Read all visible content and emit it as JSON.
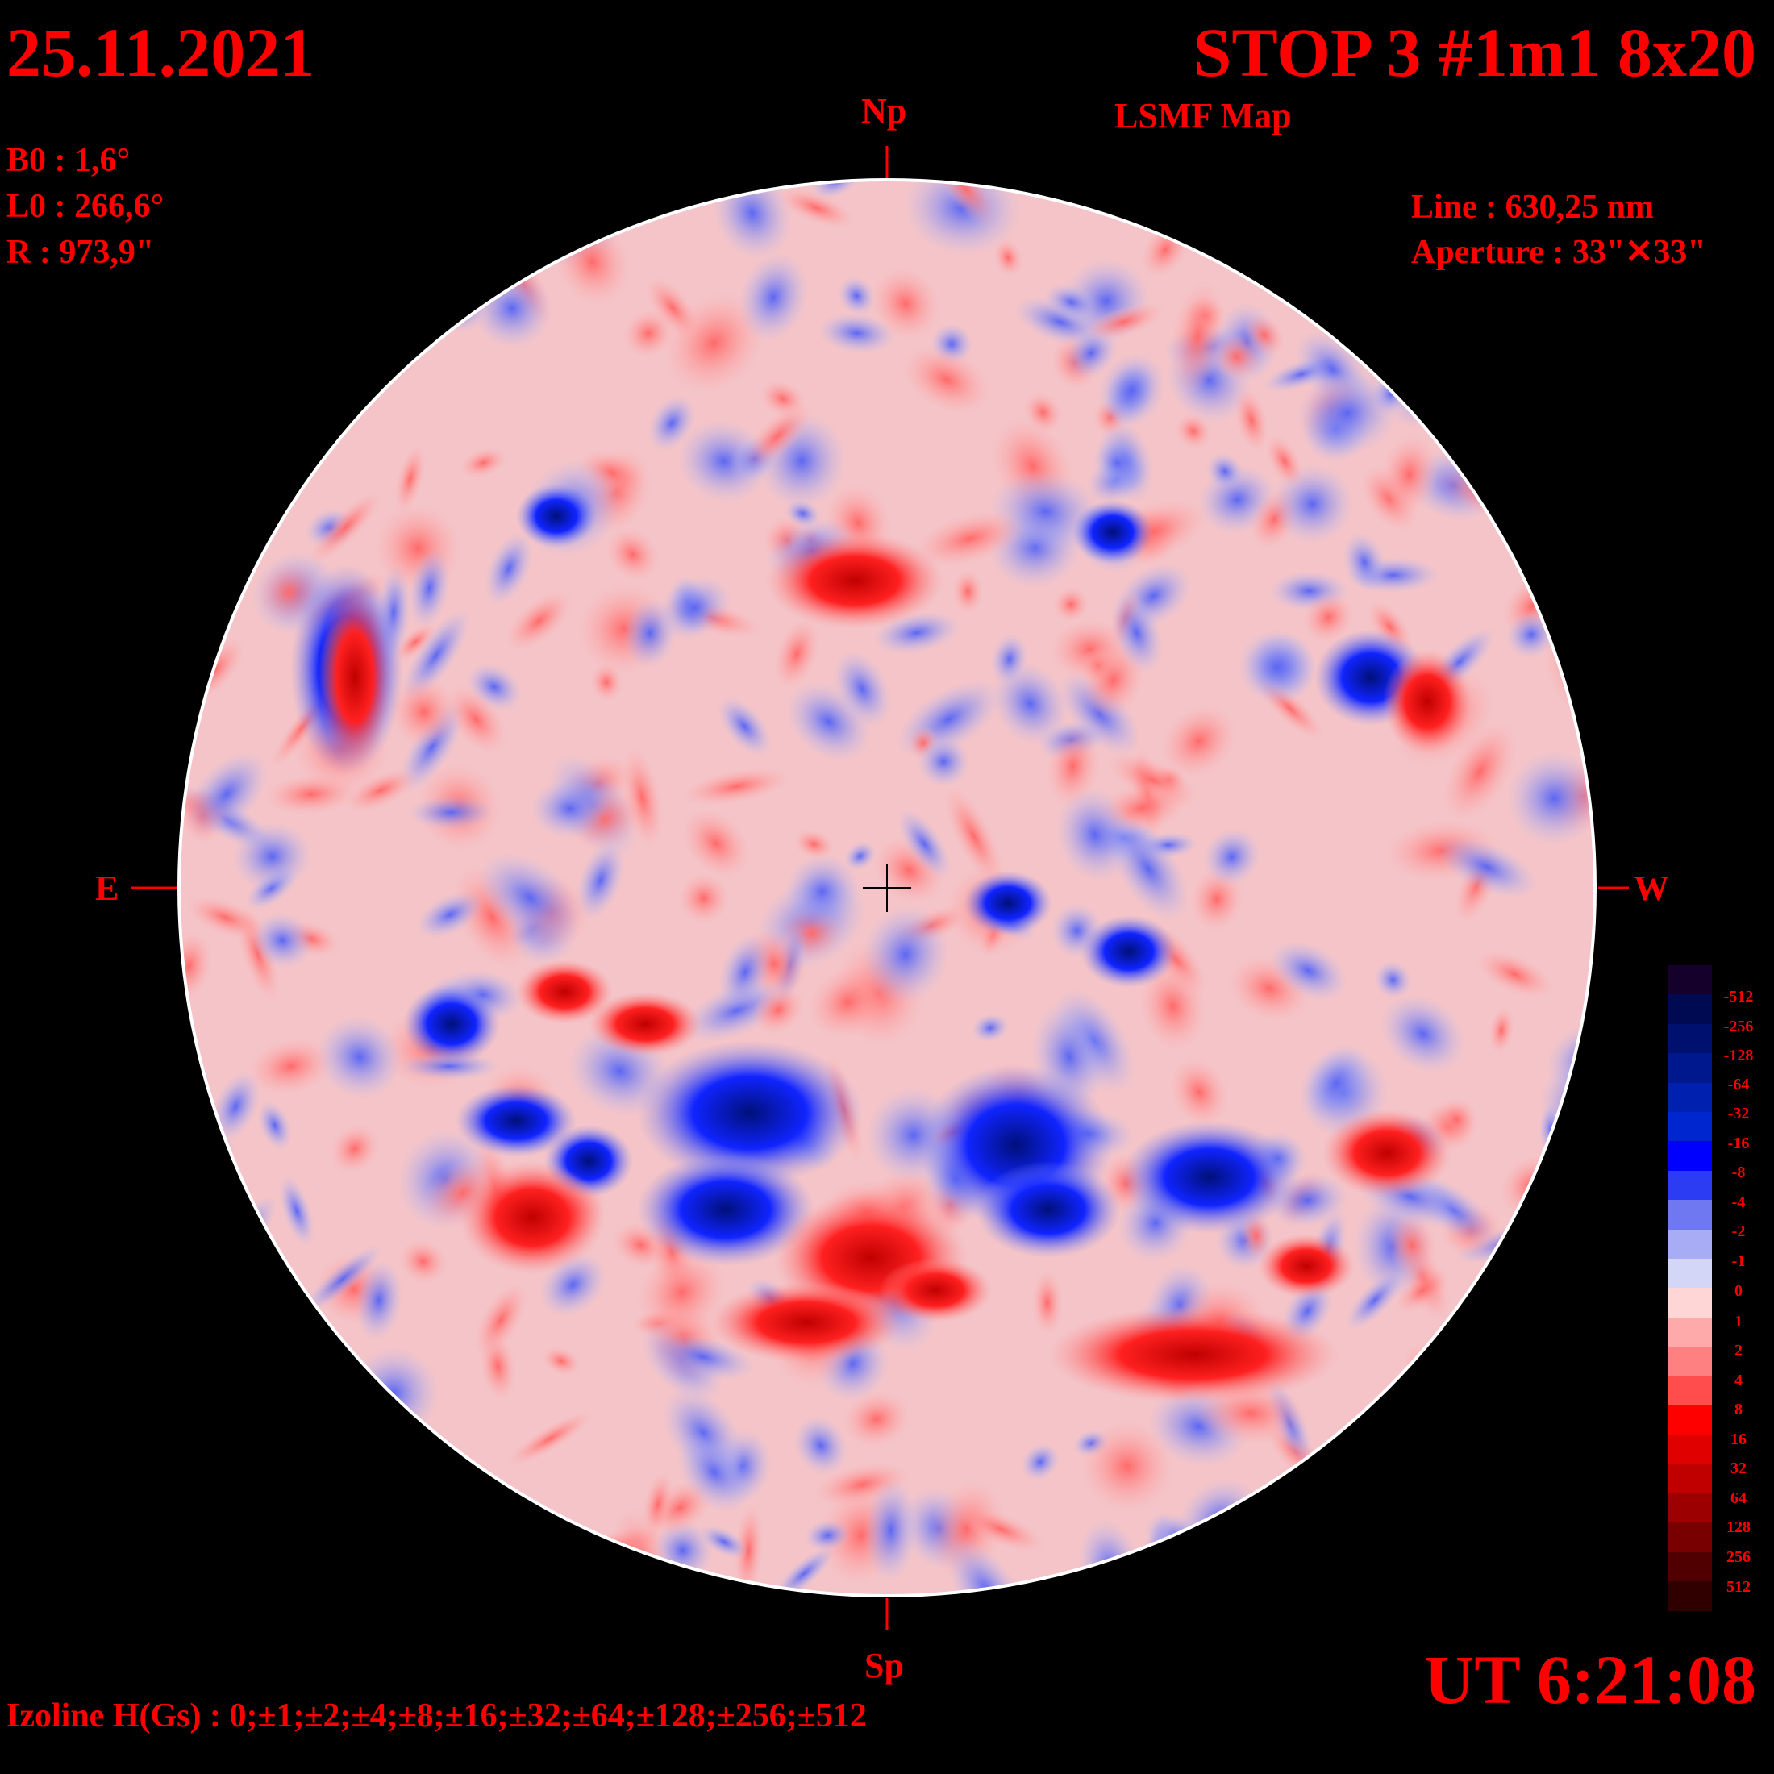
{
  "header": {
    "date": "25.11.2021",
    "title": "STOP 3 #1m1 8x20",
    "subtitle": "LSMF  Map"
  },
  "parameters": {
    "b0": "B0 : 1,6°",
    "l0": "L0 : 266,6°",
    "r": "R  : 973,9\"",
    "line": "Line :  630,25 nm",
    "aperture": "Aperture : 33\"✕33\""
  },
  "directions": {
    "north": "Np",
    "south": "Sp",
    "east": "E",
    "west": "W"
  },
  "time": "UT 6:21:08",
  "izoline": "Izoline H(Gs) : 0;±1;±2;±4;±8;±16;±32;±64;±128;±256;±512",
  "legend": {
    "levels": [
      "-512",
      "-256",
      "-128",
      "-64",
      "-32",
      "-16",
      "-8",
      "-4",
      "-2",
      "-1",
      "0",
      "1",
      "2",
      "4",
      "8",
      "16",
      "32",
      "64",
      "128",
      "256",
      "512"
    ],
    "colors": [
      "#14002a",
      "#000a52",
      "#00106e",
      "#00188e",
      "#0020b0",
      "#0026d0",
      "#0000ff",
      "#2b3cf2",
      "#6f78f0",
      "#a8acf4",
      "#d4d6f8",
      "#ffd6d6",
      "#ffaaaa",
      "#ff8080",
      "#ff4c4c",
      "#ff0000",
      "#e00000",
      "#c00000",
      "#9c0000",
      "#780000",
      "#500000",
      "#300000"
    ]
  },
  "colors": {
    "text": "#ff0000",
    "background": "#000000",
    "positive": "#ff2a2a",
    "negative": "#1a2cff",
    "zero_contour": "#ffffff"
  }
}
